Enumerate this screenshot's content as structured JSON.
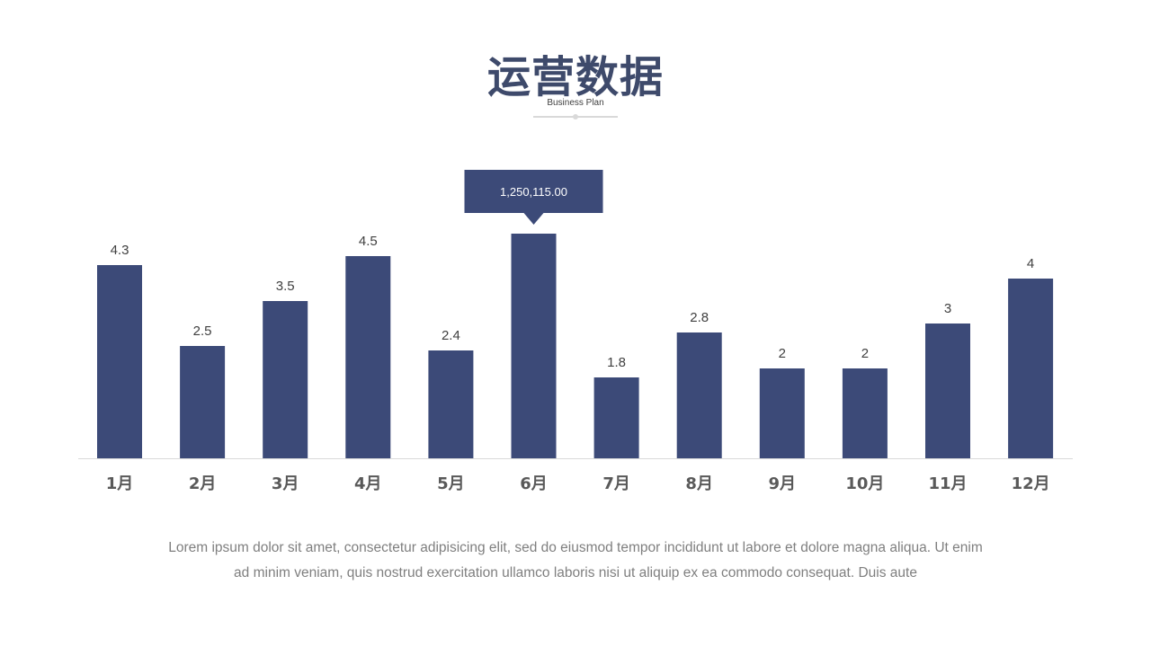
{
  "header": {
    "title": "运营数据",
    "subtitle": "Business Plan"
  },
  "colors": {
    "bar": "#3c4a78",
    "title": "#3e4a6b",
    "axis": "#d9d9d9",
    "label": "#404040",
    "caption": "#7f7f7f"
  },
  "chart_data": {
    "type": "bar",
    "categories": [
      "1月",
      "2月",
      "3月",
      "4月",
      "5月",
      "6月",
      "7月",
      "8月",
      "9月",
      "10月",
      "11月",
      "12月"
    ],
    "values": [
      4.3,
      2.5,
      3.5,
      4.5,
      2.4,
      5.0,
      1.8,
      2.8,
      2,
      2,
      3,
      4
    ],
    "data_labels": [
      "4.3",
      "2.5",
      "3.5",
      "4.5",
      "2.4",
      "",
      "1.8",
      "2.8",
      "2",
      "2",
      "3",
      "4"
    ],
    "callout": {
      "category": "6月",
      "text": "1,250,115.00"
    },
    "ylim": [
      0,
      5
    ],
    "grid": false,
    "legend": "none"
  },
  "caption": {
    "line1": "Lorem ipsum dolor sit amet, consectetur adipisicing elit, sed do eiusmod tempor incididunt ut labore et dolore magna aliqua. Ut enim",
    "line2": "ad minim veniam, quis nostrud exercitation ullamco laboris nisi ut aliquip ex ea commodo consequat. Duis aute"
  }
}
